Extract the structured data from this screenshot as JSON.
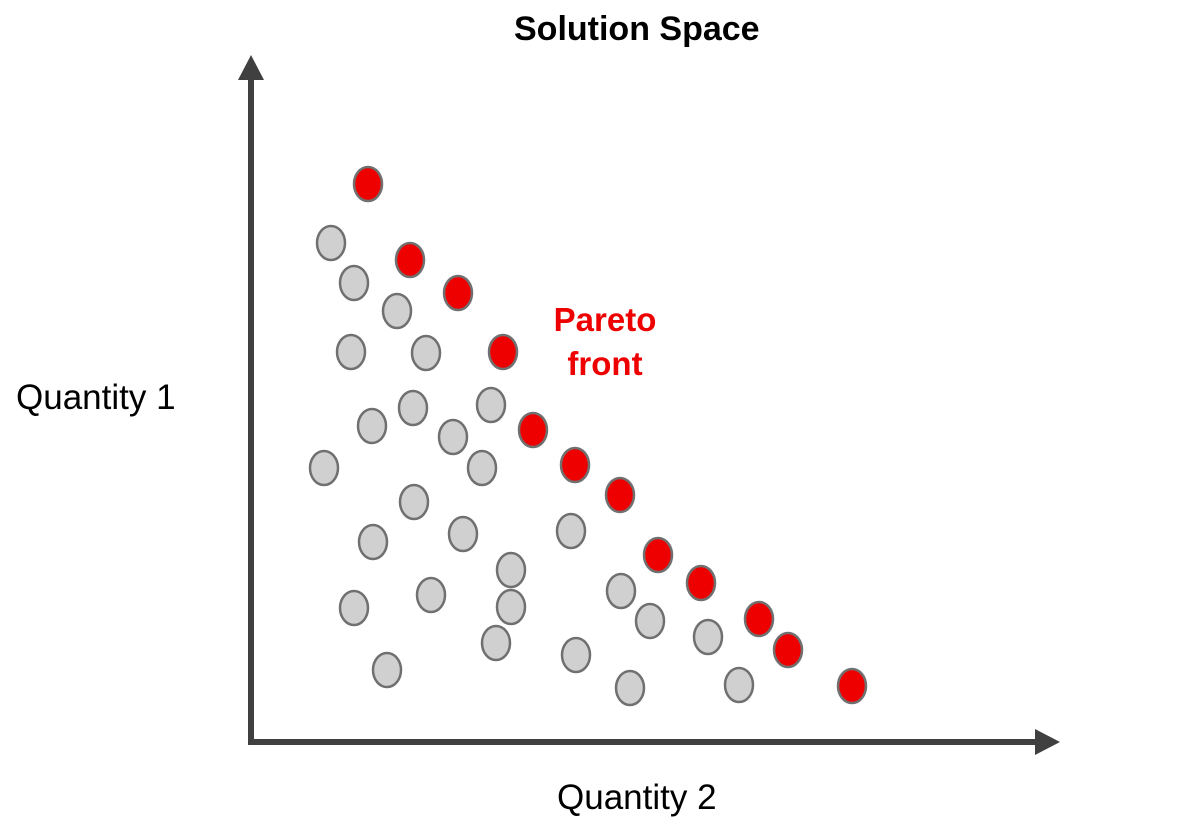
{
  "title": "Solution Space",
  "x_axis_label": "Quantity 2",
  "y_axis_label": "Quantity 1",
  "annotation": {
    "line1": "Pareto",
    "line2": "front",
    "color": "#ee0000"
  },
  "colors": {
    "axis": "#404040",
    "pareto_fill": "#ee0000",
    "dominated_fill": "#d0d0d0",
    "marker_stroke": "#707070"
  }
}
